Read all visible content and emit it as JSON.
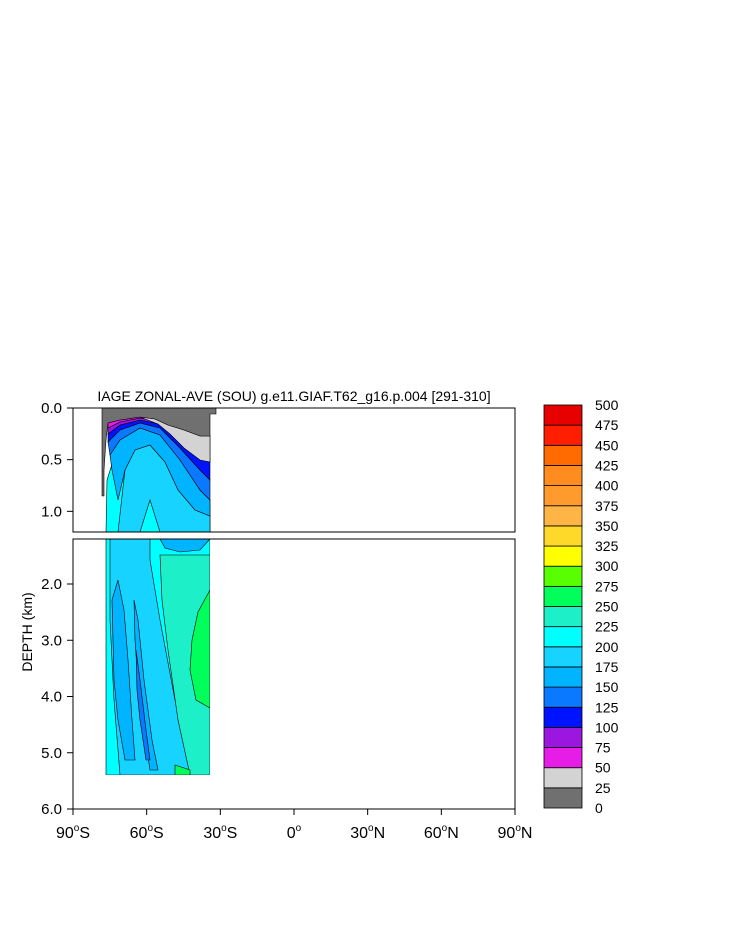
{
  "chart_data": {
    "type": "heatmap",
    "title": "IAGE ZONAL-AVE (SOU) g.e11.GIAF.T62_g16.p.004 [291-310]",
    "ylabel": "DEPTH (km)",
    "xlim": [
      -90,
      90
    ],
    "ylim": [
      0,
      6
    ],
    "upper_panel_ylim": [
      0,
      1.2
    ],
    "lower_panel_ylim": [
      1.2,
      6
    ],
    "x_ticks": [
      {
        "value": -90,
        "num": "90",
        "hemi": "S"
      },
      {
        "value": -60,
        "num": "60",
        "hemi": "S"
      },
      {
        "value": -30,
        "num": "30",
        "hemi": "S"
      },
      {
        "value": 0,
        "num": "0",
        "hemi": ""
      },
      {
        "value": 30,
        "num": "30",
        "hemi": "N"
      },
      {
        "value": 60,
        "num": "60",
        "hemi": "N"
      },
      {
        "value": 90,
        "num": "90",
        "hemi": "N"
      }
    ],
    "y_ticks_upper": [
      {
        "value": 0.0,
        "label": "0.0"
      },
      {
        "value": 0.5,
        "label": "0.5"
      },
      {
        "value": 1.0,
        "label": "1.0"
      }
    ],
    "y_ticks_lower": [
      {
        "value": 2.0,
        "label": "2.0"
      },
      {
        "value": 3.0,
        "label": "3.0"
      },
      {
        "value": 4.0,
        "label": "4.0"
      },
      {
        "value": 5.0,
        "label": "5.0"
      },
      {
        "value": 6.0,
        "label": "6.0"
      }
    ],
    "colorbar": {
      "labels": [
        "0",
        "25",
        "50",
        "75",
        "100",
        "125",
        "150",
        "175",
        "200",
        "225",
        "250",
        "275",
        "300",
        "325",
        "350",
        "375",
        "400",
        "425",
        "450",
        "475",
        "500"
      ],
      "colors": [
        "#707070",
        "#d3d3d3",
        "#e61de6",
        "#9b17e0",
        "#0013ff",
        "#0a78ff",
        "#00b4ff",
        "#17d3ff",
        "#00ffff",
        "#1df0c8",
        "#00ff5a",
        "#58ff00",
        "#ffff00",
        "#ffd92a",
        "#ffb446",
        "#ff9b2d",
        "#ff8c1e",
        "#ff6b00",
        "#ff1e00",
        "#e60000"
      ]
    },
    "field_regions": [
      {
        "level": "0-25",
        "color": "#707070",
        "lat_range": [
          -80,
          -31
        ],
        "depth_range": [
          0.0,
          0.8
        ]
      },
      {
        "level": "25-50",
        "color": "#d3d3d3",
        "lat_range": [
          -55,
          -31
        ],
        "depth_range": [
          0.1,
          0.45
        ]
      },
      {
        "level": "50-75",
        "color": "#e61de6",
        "lat_range": [
          -78,
          -31
        ],
        "depth_range": [
          0.1,
          0.6
        ]
      },
      {
        "level": "75-100",
        "color": "#9b17e0",
        "lat_range": [
          -78,
          -31
        ],
        "depth_range": [
          0.12,
          0.7
        ]
      },
      {
        "level": "100-125",
        "color": "#0013ff",
        "lat_range": [
          -78,
          -31
        ],
        "depth_range": [
          0.15,
          0.85
        ]
      },
      {
        "level": "125-150",
        "color": "#0a78ff",
        "lat_range": [
          -78,
          -31
        ],
        "depth_range": [
          0.18,
          1.2
        ]
      },
      {
        "level": "150-175",
        "color": "#00b4ff",
        "lat_range": [
          -78,
          -31
        ],
        "depth_range": [
          0.3,
          5.4
        ]
      },
      {
        "level": "175-200",
        "color": "#17d3ff",
        "lat_range": [
          -78,
          -31
        ],
        "depth_range": [
          0.4,
          5.4
        ]
      },
      {
        "level": "200-225",
        "color": "#00ffff",
        "lat_range": [
          -78,
          -31
        ],
        "depth_range": [
          0.6,
          5.4
        ]
      },
      {
        "level": "225-250",
        "color": "#1df0c8",
        "lat_range": [
          -50,
          -31
        ],
        "depth_range": [
          1.8,
          5.4
        ]
      },
      {
        "level": "250-275",
        "color": "#00ff5a",
        "lat_range": [
          -42,
          -31
        ],
        "depth_range": [
          2.0,
          5.4
        ]
      }
    ]
  }
}
